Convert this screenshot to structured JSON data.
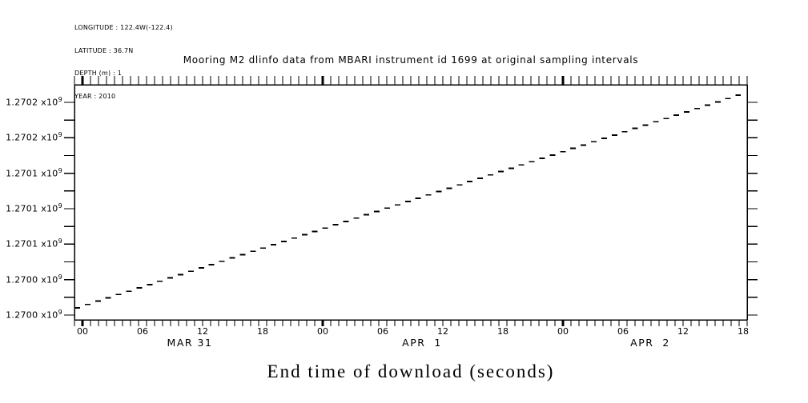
{
  "page": {
    "background": "#ffffff",
    "ink": "#000000"
  },
  "header": {
    "meta_lines": [
      "LONGITUDE : 122.4W(-122.4)",
      "LATITUDE : 36.7N",
      "DEPTH (m) : 1",
      "YEAR : 2010"
    ]
  },
  "title": "Mooring M2 dlinfo data from MBARI instrument id 1699 at original sampling intervals",
  "x_axis_title": "End time of download (seconds)",
  "y_axis": {
    "labels_top_to_bottom": [
      "1.2702",
      "1.2702",
      "1.2701",
      "1.2701",
      "1.2701",
      "1.2700",
      "1.2700"
    ],
    "multiplier": "x10",
    "exponent": "9"
  },
  "x_axis": {
    "hour_labels": [
      "00",
      "06",
      "12",
      "18",
      "00",
      "06",
      "12",
      "18",
      "00",
      "06",
      "12",
      "18"
    ],
    "day_labels": [
      "MAR 31",
      "APR  1",
      "APR  2"
    ]
  },
  "chart_data": {
    "type": "line",
    "line_style": "dashed",
    "title": "Mooring M2 dlinfo data from MBARI instrument id 1699 at original sampling intervals",
    "xlabel": "End time of download (seconds)",
    "ylabel": "",
    "x_start": "2010-03-31 00:00",
    "x_end": "2010-04-02 18:00",
    "x_major_tick_hours": 6,
    "grid": false,
    "legend": false,
    "y_major_tick_values_seconds": [
      1270000000,
      1270033333,
      1270066667,
      1270100000,
      1270133333,
      1270166667,
      1270200000
    ],
    "y_major_tick_display_bottom_to_top": [
      "1.2700 x10^9",
      "1.2700 x10^9",
      "1.2701 x10^9",
      "1.2701 x10^9",
      "1.2701 x10^9",
      "1.2702 x10^9",
      "1.2702 x10^9"
    ],
    "series": [
      {
        "name": "end time of download",
        "points_t_hours_from_mar31_v_seconds": [
          {
            "t": -0.8,
            "v": 1270006800
          },
          {
            "t": 0,
            "v": 1270009200
          },
          {
            "t": 6,
            "v": 1270027400
          },
          {
            "t": 12,
            "v": 1270045600
          },
          {
            "t": 18,
            "v": 1270063800
          },
          {
            "t": 24,
            "v": 1270081900
          },
          {
            "t": 30,
            "v": 1270100100
          },
          {
            "t": 36,
            "v": 1270118300
          },
          {
            "t": 42,
            "v": 1270136500
          },
          {
            "t": 48,
            "v": 1270154700
          },
          {
            "t": 54,
            "v": 1270172900
          },
          {
            "t": 60,
            "v": 1270191100
          },
          {
            "t": 65.7,
            "v": 1270208300
          }
        ]
      }
    ]
  }
}
